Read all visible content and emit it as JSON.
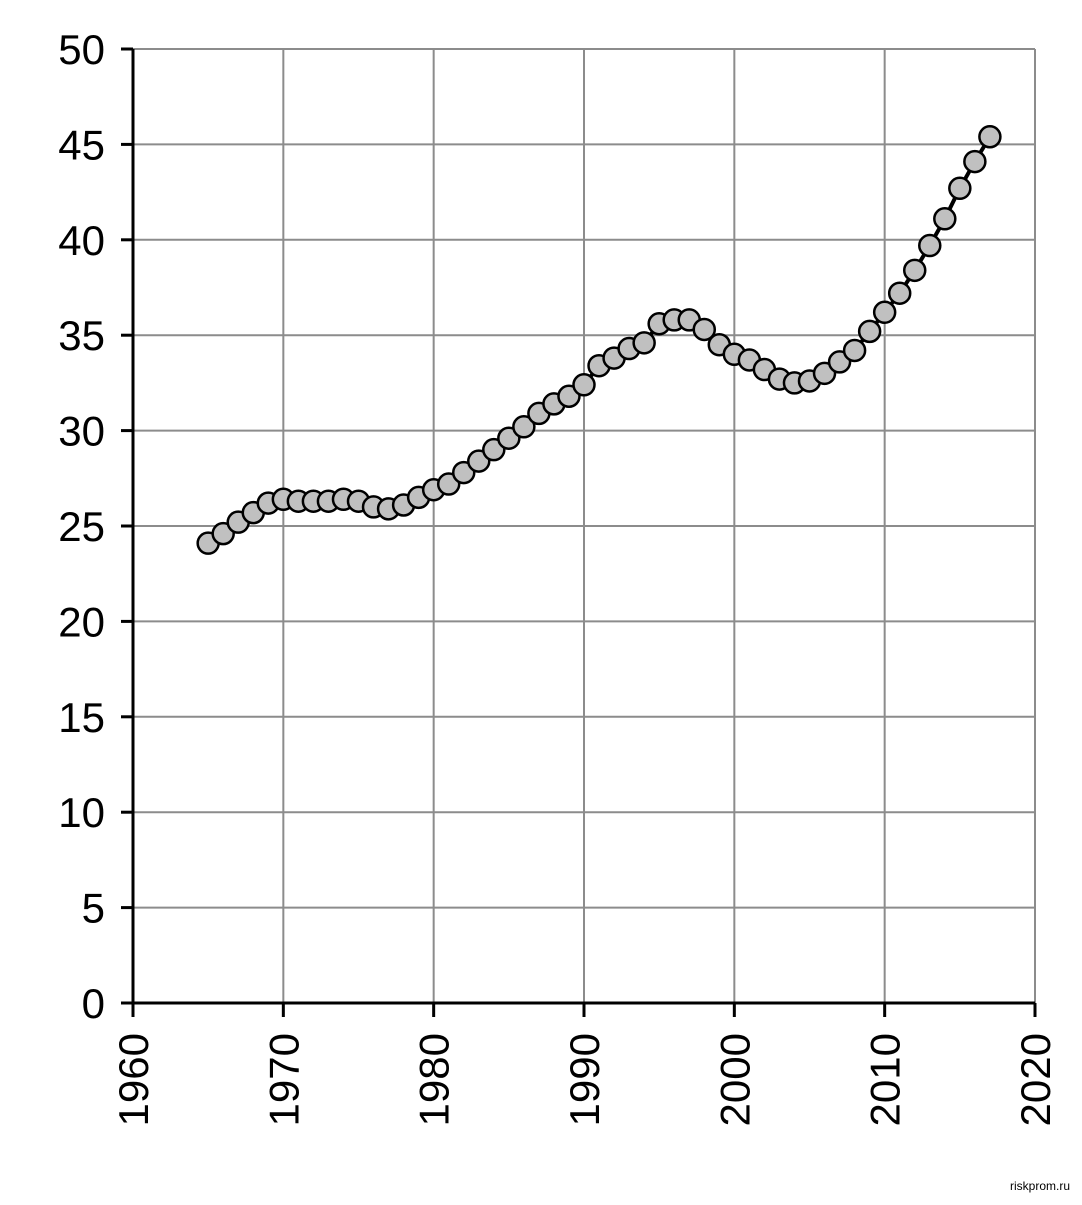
{
  "chart_data": {
    "type": "line",
    "x": [
      1965,
      1966,
      1967,
      1968,
      1969,
      1970,
      1971,
      1972,
      1973,
      1974,
      1975,
      1976,
      1977,
      1978,
      1979,
      1980,
      1981,
      1982,
      1983,
      1984,
      1985,
      1986,
      1987,
      1988,
      1989,
      1990,
      1991,
      1992,
      1993,
      1994,
      1995,
      1996,
      1997,
      1998,
      1999,
      2000,
      2001,
      2002,
      2003,
      2004,
      2005,
      2006,
      2007,
      2008,
      2009,
      2010,
      2011,
      2012,
      2013,
      2014,
      2015,
      2016,
      2017
    ],
    "values": [
      24.1,
      24.6,
      25.2,
      25.7,
      26.2,
      26.4,
      26.3,
      26.3,
      26.3,
      26.4,
      26.3,
      26.0,
      25.9,
      26.1,
      26.5,
      26.9,
      27.2,
      27.8,
      28.4,
      29.0,
      29.6,
      30.2,
      30.9,
      31.4,
      31.8,
      32.4,
      33.4,
      33.8,
      34.3,
      34.6,
      35.6,
      35.8,
      35.8,
      35.3,
      34.5,
      34.0,
      33.7,
      33.2,
      32.7,
      32.5,
      32.6,
      33.0,
      33.6,
      34.2,
      35.2,
      36.2,
      37.2,
      38.4,
      39.7,
      41.1,
      42.7,
      44.1,
      45.4
    ],
    "color": "#c0c0c0",
    "xlim": [
      1960,
      2020
    ],
    "xticks": [
      1960,
      1970,
      1980,
      1990,
      2000,
      2010,
      2020
    ],
    "ylim": [
      0,
      50
    ],
    "yticks": [
      0,
      5,
      10,
      15,
      20,
      25,
      30,
      35,
      40,
      45,
      50
    ],
    "grid": true,
    "watermark": "riskprom.ru"
  }
}
